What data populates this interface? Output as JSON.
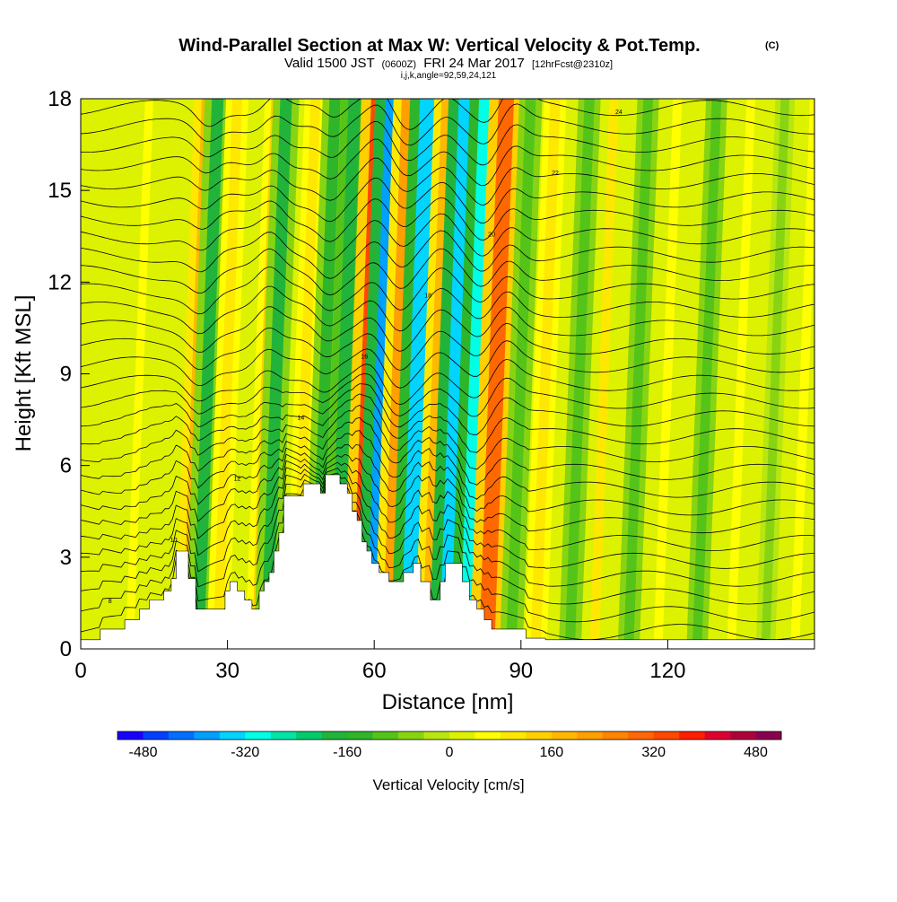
{
  "header": {
    "title": "Wind-Parallel Section at Max W: Vertical Velocity & Pot.Temp.",
    "title_mark": "(C)",
    "valid_prefix": "Valid 1500 JST",
    "valid_utc": "(0600Z)",
    "valid_date": "FRI 24 Mar 2017",
    "valid_fcst": "[12hrFcst@2310z]",
    "indices": "i,j,k,angle=92,59,24,121"
  },
  "chart_data": {
    "type": "heatmap",
    "title": "Wind-Parallel Section at Max W: Vertical Velocity & Pot.Temp.",
    "xlabel": "Distance [nm]",
    "ylabel": "Height [Kft MSL]",
    "xlim": [
      0,
      150
    ],
    "ylim": [
      0,
      18
    ],
    "xticks": [
      0,
      30,
      60,
      90,
      120
    ],
    "yticks": [
      0,
      3,
      6,
      9,
      12,
      15,
      18
    ],
    "background_w_cms": 20,
    "w_bands": [
      {
        "x": 10,
        "w": 40
      },
      {
        "x": 22,
        "w": 190
      },
      {
        "x": 24,
        "w": -170
      },
      {
        "x": 28,
        "w": 110
      },
      {
        "x": 36,
        "w": 120
      },
      {
        "x": 38,
        "w": -170
      },
      {
        "x": 44,
        "w": 100
      },
      {
        "x": 48,
        "w": -150
      },
      {
        "x": 52,
        "w": -190
      },
      {
        "x": 57,
        "w": 320
      },
      {
        "x": 60,
        "w": -380
      },
      {
        "x": 63,
        "w": 230
      },
      {
        "x": 67,
        "w": -330
      },
      {
        "x": 71,
        "w": 180
      },
      {
        "x": 75,
        "w": -360
      },
      {
        "x": 79,
        "w": -300
      },
      {
        "x": 83,
        "w": 300
      },
      {
        "x": 88,
        "w": -120
      },
      {
        "x": 93,
        "w": 110
      },
      {
        "x": 100,
        "w": -110
      },
      {
        "x": 105,
        "w": 80
      },
      {
        "x": 112,
        "w": -100
      },
      {
        "x": 118,
        "w": 70
      },
      {
        "x": 126,
        "w": -90
      },
      {
        "x": 133,
        "w": 60
      },
      {
        "x": 140,
        "w": -60
      },
      {
        "x": 146,
        "w": 70
      }
    ],
    "terrain": [
      {
        "x": 0,
        "h": 0.3
      },
      {
        "x": 4,
        "h": 0.3
      },
      {
        "x": 4,
        "h": 0.65
      },
      {
        "x": 9,
        "h": 0.65
      },
      {
        "x": 9,
        "h": 0.95
      },
      {
        "x": 12,
        "h": 0.95
      },
      {
        "x": 12,
        "h": 1.3
      },
      {
        "x": 14,
        "h": 1.3
      },
      {
        "x": 14,
        "h": 1.6
      },
      {
        "x": 17,
        "h": 1.6
      },
      {
        "x": 17,
        "h": 1.9
      },
      {
        "x": 18.5,
        "h": 1.9
      },
      {
        "x": 18.5,
        "h": 2.3
      },
      {
        "x": 19.5,
        "h": 2.3
      },
      {
        "x": 19.5,
        "h": 3.2
      },
      {
        "x": 22,
        "h": 3.2
      },
      {
        "x": 22,
        "h": 2.3
      },
      {
        "x": 23.5,
        "h": 2.3
      },
      {
        "x": 23.5,
        "h": 1.3
      },
      {
        "x": 29.5,
        "h": 1.3
      },
      {
        "x": 29.5,
        "h": 1.9
      },
      {
        "x": 30.5,
        "h": 1.9
      },
      {
        "x": 30.5,
        "h": 2.2
      },
      {
        "x": 32,
        "h": 2.2
      },
      {
        "x": 32,
        "h": 1.9
      },
      {
        "x": 33.5,
        "h": 1.9
      },
      {
        "x": 33.5,
        "h": 1.6
      },
      {
        "x": 35,
        "h": 1.6
      },
      {
        "x": 35,
        "h": 1.3
      },
      {
        "x": 36.5,
        "h": 1.3
      },
      {
        "x": 36.5,
        "h": 1.9
      },
      {
        "x": 37.5,
        "h": 1.9
      },
      {
        "x": 37.5,
        "h": 2.2
      },
      {
        "x": 38.5,
        "h": 2.2
      },
      {
        "x": 38.5,
        "h": 2.5
      },
      {
        "x": 39.5,
        "h": 2.5
      },
      {
        "x": 39.5,
        "h": 3.2
      },
      {
        "x": 40.5,
        "h": 3.2
      },
      {
        "x": 40.5,
        "h": 3.8
      },
      {
        "x": 41.5,
        "h": 3.8
      },
      {
        "x": 41.5,
        "h": 5.0
      },
      {
        "x": 45.5,
        "h": 5.0
      },
      {
        "x": 45.5,
        "h": 5.4
      },
      {
        "x": 49,
        "h": 5.4
      },
      {
        "x": 49,
        "h": 5.1
      },
      {
        "x": 50,
        "h": 5.1
      },
      {
        "x": 50,
        "h": 5.7
      },
      {
        "x": 53,
        "h": 5.7
      },
      {
        "x": 53,
        "h": 5.4
      },
      {
        "x": 54.5,
        "h": 5.4
      },
      {
        "x": 54.5,
        "h": 5.1
      },
      {
        "x": 55.5,
        "h": 5.1
      },
      {
        "x": 55.5,
        "h": 4.5
      },
      {
        "x": 56.5,
        "h": 4.5
      },
      {
        "x": 56.5,
        "h": 4.2
      },
      {
        "x": 57.5,
        "h": 4.2
      },
      {
        "x": 57.5,
        "h": 3.5
      },
      {
        "x": 58.5,
        "h": 3.5
      },
      {
        "x": 58.5,
        "h": 3.2
      },
      {
        "x": 59.5,
        "h": 3.2
      },
      {
        "x": 59.5,
        "h": 2.8
      },
      {
        "x": 61,
        "h": 2.8
      },
      {
        "x": 61,
        "h": 2.5
      },
      {
        "x": 63,
        "h": 2.5
      },
      {
        "x": 63,
        "h": 2.2
      },
      {
        "x": 66,
        "h": 2.2
      },
      {
        "x": 66,
        "h": 2.5
      },
      {
        "x": 68,
        "h": 2.5
      },
      {
        "x": 68,
        "h": 2.8
      },
      {
        "x": 69.5,
        "h": 2.8
      },
      {
        "x": 69.5,
        "h": 2.2
      },
      {
        "x": 71.5,
        "h": 2.2
      },
      {
        "x": 71.5,
        "h": 1.6
      },
      {
        "x": 73.5,
        "h": 1.6
      },
      {
        "x": 73.5,
        "h": 2.2
      },
      {
        "x": 74.5,
        "h": 2.2
      },
      {
        "x": 74.5,
        "h": 2.8
      },
      {
        "x": 76,
        "h": 2.8
      },
      {
        "x": 76,
        "h": 2.8
      },
      {
        "x": 78,
        "h": 2.8
      },
      {
        "x": 78,
        "h": 2.2
      },
      {
        "x": 79.5,
        "h": 2.2
      },
      {
        "x": 79.5,
        "h": 1.6
      },
      {
        "x": 81,
        "h": 1.6
      },
      {
        "x": 81,
        "h": 1.3
      },
      {
        "x": 82.5,
        "h": 1.3
      },
      {
        "x": 82.5,
        "h": 0.95
      },
      {
        "x": 84,
        "h": 0.95
      },
      {
        "x": 84,
        "h": 0.65
      },
      {
        "x": 91,
        "h": 0.65
      },
      {
        "x": 91,
        "h": 0.35
      },
      {
        "x": 95,
        "h": 0.35
      },
      {
        "x": 95,
        "h": 0.3
      },
      {
        "x": 150,
        "h": 0.3
      }
    ],
    "theta_contours": {
      "count": 30,
      "base_height": 0.3,
      "spacing": 0.6,
      "labels": [
        "8",
        "10",
        "12",
        "14",
        "16",
        "18",
        "20",
        "22",
        "24"
      ]
    },
    "colorbar": {
      "ticks": [
        "-480",
        "-320",
        "-160",
        "0",
        "160",
        "320",
        "480"
      ],
      "min": -520,
      "max": 520,
      "step": 40,
      "colors": [
        "#1a00ff",
        "#0040ff",
        "#0070ff",
        "#00a0ff",
        "#00d4ff",
        "#00ffe6",
        "#00e6a8",
        "#00cc6e",
        "#22b43a",
        "#2fb52a",
        "#55c418",
        "#88d412",
        "#b8e610",
        "#ddf200",
        "#ffff00",
        "#ffe800",
        "#ffd000",
        "#ffb800",
        "#ff9f00",
        "#ff8400",
        "#ff6800",
        "#ff4800",
        "#ff1f00",
        "#e00030",
        "#b0003a",
        "#8a0050"
      ],
      "label": "Vertical Velocity [cm/s]"
    }
  }
}
